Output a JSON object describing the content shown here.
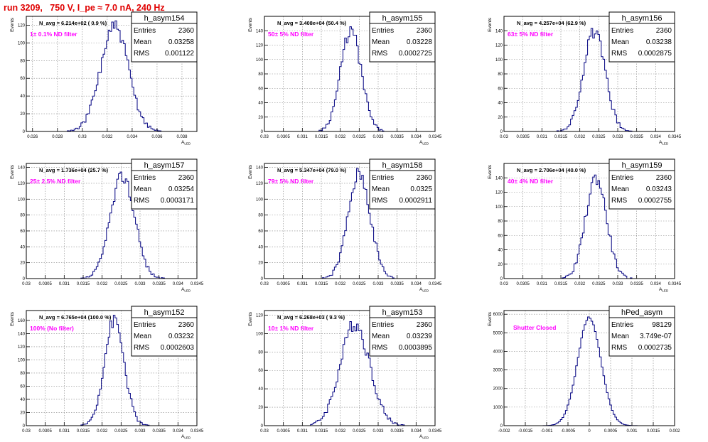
{
  "run_title": "run 3209,   750 V, I_pe ≈ 7.0 nA, 240 Hz",
  "colors": {
    "histogram": "#000080",
    "filter_label": "#ff00ff",
    "run_title": "#e00000",
    "grid": "#888888"
  },
  "chart_data": [
    {
      "type": "histogram",
      "name": "h_asym154",
      "navg": "N_avg = 6.214e+02 ( 0.9 %)",
      "filter": "1± 0.1% ND filter",
      "stats": {
        "entries": "2360",
        "mean": "0.03258",
        "rms": "0.001122"
      },
      "ylabel": "Events",
      "xlabel": "A_LED",
      "xlim": [
        0.0255,
        0.0392
      ],
      "ylim": [
        0,
        130
      ],
      "xticks": [
        "0.026",
        "0.028",
        "0.03",
        "0.032",
        "0.034",
        "0.036",
        "0.038"
      ],
      "yticks": [
        "0",
        "20",
        "40",
        "60",
        "80",
        "100",
        "120"
      ],
      "profile": {
        "mean": 0.03258,
        "rms": 0.001122,
        "peak": 118,
        "seed": 154
      }
    },
    {
      "type": "histogram",
      "name": "h_asym155",
      "navg": "N_avg = 3.408e+04 (50.4 %)",
      "filter": "50± 5% ND filter",
      "stats": {
        "entries": "2360",
        "mean": "0.03228",
        "rms": "0.0002725"
      },
      "ylabel": "Events",
      "xlabel": "A_LED",
      "xlim": [
        0.03,
        0.0345
      ],
      "ylim": [
        0,
        160
      ],
      "xticks": [
        "0.03",
        "0.0305",
        "0.031",
        "0.0315",
        "0.032",
        "0.0325",
        "0.033",
        "0.0335",
        "0.034",
        "0.0345"
      ],
      "yticks": [
        "0",
        "20",
        "40",
        "60",
        "80",
        "100",
        "120",
        "140"
      ],
      "profile": {
        "mean": 0.03228,
        "rms": 0.0002725,
        "peak": 140,
        "seed": 155
      }
    },
    {
      "type": "histogram",
      "name": "h_asym156",
      "navg": "N_avg = 4.257e+04 (62.9 %)",
      "filter": "63± 5% ND filter",
      "stats": {
        "entries": "2360",
        "mean": "0.03238",
        "rms": "0.0002875"
      },
      "ylabel": "Events",
      "xlabel": "A_LED",
      "xlim": [
        0.03,
        0.0345
      ],
      "ylim": [
        0,
        160
      ],
      "xticks": [
        "0.03",
        "0.0305",
        "0.031",
        "0.0315",
        "0.032",
        "0.0325",
        "0.033",
        "0.0335",
        "0.034",
        "0.0345"
      ],
      "yticks": [
        "0",
        "20",
        "40",
        "60",
        "80",
        "100",
        "120",
        "140"
      ],
      "profile": {
        "mean": 0.03238,
        "rms": 0.0002875,
        "peak": 138,
        "seed": 156
      }
    },
    {
      "type": "histogram",
      "name": "h_asym157",
      "navg": "N_avg = 1.736e+04 (25.7 %)",
      "filter": "25± 2.5% ND filter",
      "stats": {
        "entries": "2360",
        "mean": "0.03254",
        "rms": "0.0003171"
      },
      "ylabel": "Events",
      "xlabel": "A_LED",
      "xlim": [
        0.03,
        0.0345
      ],
      "ylim": [
        0,
        145
      ],
      "xticks": [
        "0.03",
        "0.0305",
        "0.031",
        "0.0315",
        "0.032",
        "0.0325",
        "0.033",
        "0.0335",
        "0.034",
        "0.0345"
      ],
      "yticks": [
        "0",
        "20",
        "40",
        "60",
        "80",
        "100",
        "120",
        "140"
      ],
      "profile": {
        "mean": 0.03254,
        "rms": 0.0003171,
        "peak": 130,
        "seed": 157
      }
    },
    {
      "type": "histogram",
      "name": "h_asym158",
      "navg": "N_avg = 5.347e+04 (79.0 %)",
      "filter": "79± 5% ND filter",
      "stats": {
        "entries": "2360",
        "mean": "0.0325",
        "rms": "0.0002911"
      },
      "ylabel": "Events",
      "xlabel": "A_LED",
      "xlim": [
        0.03,
        0.0345
      ],
      "ylim": [
        0,
        145
      ],
      "xticks": [
        "0.03",
        "0.0305",
        "0.031",
        "0.0315",
        "0.032",
        "0.0325",
        "0.033",
        "0.0335",
        "0.034",
        "0.0345"
      ],
      "yticks": [
        "0",
        "20",
        "40",
        "60",
        "80",
        "100",
        "120",
        "140"
      ],
      "profile": {
        "mean": 0.0325,
        "rms": 0.0002911,
        "peak": 132,
        "seed": 158
      }
    },
    {
      "type": "histogram",
      "name": "h_asym159",
      "navg": "N_avg = 2.706e+04 (40.0 %)",
      "filter": "40± 4% ND filter",
      "stats": {
        "entries": "2360",
        "mean": "0.03243",
        "rms": "0.0002755"
      },
      "ylabel": "Events",
      "xlabel": "A_LED",
      "xlim": [
        0.03,
        0.0345
      ],
      "ylim": [
        0,
        160
      ],
      "xticks": [
        "0.03",
        "0.0305",
        "0.031",
        "0.0315",
        "0.032",
        "0.0325",
        "0.033",
        "0.0335",
        "0.034",
        "0.0345"
      ],
      "yticks": [
        "0",
        "20",
        "40",
        "60",
        "80",
        "100",
        "120",
        "140"
      ],
      "profile": {
        "mean": 0.03243,
        "rms": 0.0002755,
        "peak": 140,
        "seed": 159
      }
    },
    {
      "type": "histogram",
      "name": "h_asym152",
      "navg": "N_avg = 6.765e+04 (100.0 %)",
      "filter": "100% (No filter)",
      "stats": {
        "entries": "2360",
        "mean": "0.03232",
        "rms": "0.0002603"
      },
      "ylabel": "Events",
      "xlabel": "A_LED",
      "xlim": [
        0.03,
        0.0345
      ],
      "ylim": [
        0,
        175
      ],
      "xticks": [
        "0.03",
        "0.0305",
        "0.031",
        "0.0315",
        "0.032",
        "0.0325",
        "0.033",
        "0.0335",
        "0.034",
        "0.0345"
      ],
      "yticks": [
        "0",
        "20",
        "40",
        "60",
        "80",
        "100",
        "120",
        "140",
        "160"
      ],
      "profile": {
        "mean": 0.03232,
        "rms": 0.0002603,
        "peak": 160,
        "seed": 152
      }
    },
    {
      "type": "histogram",
      "name": "h_asym153",
      "navg": "N_avg = 6.268e+03 ( 9.3 %)",
      "filter": "10± 1% ND filter",
      "stats": {
        "entries": "2360",
        "mean": "0.03239",
        "rms": "0.0003895"
      },
      "ylabel": "Events",
      "xlabel": "A_LED",
      "xlim": [
        0.03,
        0.0345
      ],
      "ylim": [
        0,
        125
      ],
      "xticks": [
        "0.03",
        "0.0305",
        "0.031",
        "0.0315",
        "0.032",
        "0.0325",
        "0.033",
        "0.0335",
        "0.034",
        "0.0345"
      ],
      "yticks": [
        "0",
        "20",
        "40",
        "60",
        "80",
        "100",
        "120"
      ],
      "profile": {
        "mean": 0.03239,
        "rms": 0.0003895,
        "peak": 110,
        "seed": 153
      }
    },
    {
      "type": "histogram",
      "name": "hPed_asym",
      "navg": "",
      "filter": "Shutter Closed",
      "stats": {
        "entries": "98129",
        "mean": "3.749e-07",
        "rms": "0.0002735"
      },
      "ylabel": "Events",
      "xlabel": "",
      "xlim": [
        -0.002,
        0.002
      ],
      "ylim": [
        0,
        6200
      ],
      "xticks": [
        "-0.002",
        "-0.0015",
        "-0.001",
        "-0.0005",
        "0",
        "0.0005",
        "0.001",
        "0.0015",
        "0.002"
      ],
      "yticks": [
        "0",
        "1000",
        "2000",
        "3000",
        "4000",
        "5000",
        "6000"
      ],
      "profile": {
        "mean": 3.749e-07,
        "rms": 0.0002735,
        "peak": 5820,
        "seed": 160
      }
    }
  ]
}
